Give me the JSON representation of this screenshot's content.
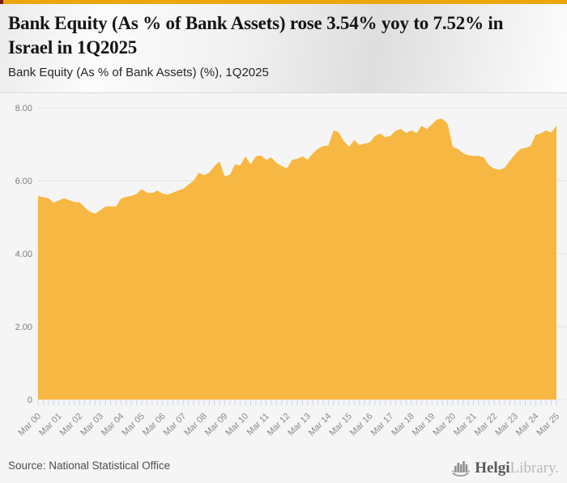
{
  "banner": {
    "color": "#efa50c",
    "accent_color": "#762019"
  },
  "header": {
    "title": "Bank Equity (As % of Bank Assets) rose 3.54% yoy to 7.52% in Israel in 1Q2025",
    "subtitle": "Bank Equity (As % of Bank Assets) (%), 1Q2025"
  },
  "chart_data": {
    "type": "area",
    "title": "Bank Equity (As % of Bank Assets) rose 3.54% yoy to 7.52% in Israel in 1Q2025",
    "subtitle": "Bank Equity (As % of Bank Assets) (%), 1Q2025",
    "unit": "%",
    "frequency": "quarterly",
    "start_period": "Mar 00",
    "end_period": "Mar 25",
    "x_tick_labels": [
      "Mar 00",
      "Mar 01",
      "Mar 02",
      "Mar 03",
      "Mar 04",
      "Mar 05",
      "Mar 06",
      "Mar 07",
      "Mar 08",
      "Mar 09",
      "Mar 10",
      "Mar 11",
      "Mar 12",
      "Mar 13",
      "Mar 14",
      "Mar 15",
      "Mar 16",
      "Mar 17",
      "Mar 18",
      "Mar 19",
      "Mar 20",
      "Mar 21",
      "Mar 22",
      "Mar 23",
      "Mar 24",
      "Mar 25"
    ],
    "values": [
      5.58,
      5.55,
      5.52,
      5.4,
      5.46,
      5.52,
      5.47,
      5.42,
      5.41,
      5.27,
      5.15,
      5.1,
      5.19,
      5.29,
      5.3,
      5.29,
      5.51,
      5.56,
      5.58,
      5.64,
      5.77,
      5.67,
      5.66,
      5.73,
      5.65,
      5.62,
      5.67,
      5.73,
      5.78,
      5.89,
      6.0,
      6.22,
      6.15,
      6.22,
      6.4,
      6.53,
      6.12,
      6.16,
      6.45,
      6.42,
      6.67,
      6.45,
      6.67,
      6.69,
      6.57,
      6.64,
      6.49,
      6.4,
      6.34,
      6.57,
      6.6,
      6.67,
      6.58,
      6.75,
      6.88,
      6.95,
      6.97,
      7.38,
      7.33,
      7.08,
      6.93,
      7.12,
      6.98,
      7.02,
      7.05,
      7.23,
      7.29,
      7.19,
      7.23,
      7.38,
      7.42,
      7.31,
      7.38,
      7.31,
      7.5,
      7.42,
      7.55,
      7.68,
      7.7,
      7.56,
      6.93,
      6.87,
      6.75,
      6.7,
      6.68,
      6.68,
      6.64,
      6.42,
      6.33,
      6.3,
      6.35,
      6.55,
      6.72,
      6.87,
      6.9,
      6.95,
      7.26,
      7.3,
      7.38,
      7.32,
      7.52
    ],
    "ylim": [
      0,
      8
    ],
    "ytick_values": [
      0,
      2,
      4,
      6,
      8
    ],
    "ytick_labels": [
      "0",
      "2.00",
      "4.00",
      "6.00",
      "8.00"
    ],
    "grid": true,
    "legend": false,
    "colors": {
      "area": "#f7b843",
      "grid": "#e2e2e2",
      "tick": "#c9d4e6",
      "x_label": "#8a8a8a",
      "y_label": "#7d7d7d"
    }
  },
  "footer": {
    "source": "Source: National Statistical Office",
    "logo_icon": "helgi-building-icon",
    "logo_bold": "Helgi",
    "logo_light": "Library."
  }
}
